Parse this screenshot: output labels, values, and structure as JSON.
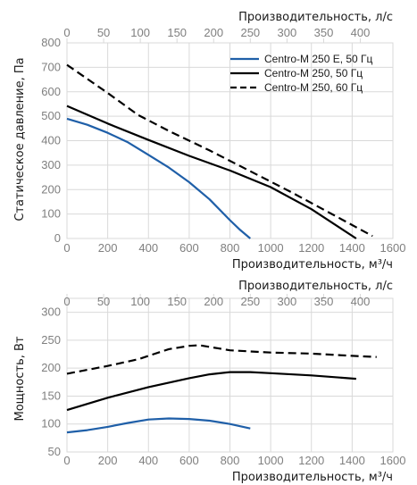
{
  "chart_data": [
    {
      "type": "line",
      "xlabel": "Производительность, м³/ч",
      "x2label": "Производительность, л/с",
      "ylabel": "Статическое давление, Па",
      "xlim": [
        0,
        1600
      ],
      "x2lim": [
        0,
        444.4
      ],
      "ylim": [
        0,
        800
      ],
      "xticks": [
        "0",
        "200",
        "400",
        "600",
        "800",
        "1000",
        "1200",
        "1400",
        "1600"
      ],
      "x2ticks": [
        "0",
        "50",
        "100",
        "150",
        "200",
        "250",
        "300",
        "350",
        "400"
      ],
      "yticks": [
        "0",
        "100",
        "200",
        "300",
        "400",
        "500",
        "600",
        "700",
        "800"
      ],
      "grid": true,
      "legend": "top-right",
      "series": [
        {
          "name": "Centro-M 250 E, 50 Гц",
          "color": "#1f5fa8",
          "dash": "solid",
          "x": [
            0,
            100,
            200,
            300,
            400,
            500,
            600,
            700,
            800,
            850,
            900
          ],
          "y": [
            490,
            465,
            432,
            393,
            342,
            290,
            230,
            160,
            75,
            35,
            0
          ]
        },
        {
          "name": "Centro-M 250, 50 Гц",
          "color": "#000000",
          "dash": "solid",
          "x": [
            0,
            200,
            400,
            600,
            800,
            1000,
            1200,
            1420
          ],
          "y": [
            542,
            470,
            403,
            338,
            278,
            210,
            120,
            0
          ]
        },
        {
          "name": "Centro-M 250, 60 Гц",
          "color": "#000000",
          "dash": "dashed",
          "x": [
            0,
            200,
            350,
            500,
            700,
            900,
            1100,
            1300,
            1500
          ],
          "y": [
            710,
            595,
            505,
            440,
            360,
            275,
            190,
            100,
            10
          ]
        }
      ]
    },
    {
      "type": "line",
      "xlabel": "Производительность, м³/ч",
      "x2label": "Производительность, л/с",
      "ylabel": "Мощность, Вт",
      "xlim": [
        0,
        1600
      ],
      "x2lim": [
        0,
        444.4
      ],
      "ylim": [
        50,
        325
      ],
      "xticks": [
        "0",
        "200",
        "400",
        "600",
        "800",
        "1000",
        "1200",
        "1400",
        "1600"
      ],
      "x2ticks": [
        "0",
        "50",
        "100",
        "150",
        "200",
        "250",
        "300",
        "350",
        "400"
      ],
      "yticks": [
        "50",
        "100",
        "150",
        "200",
        "250",
        "300"
      ],
      "grid": true,
      "series": [
        {
          "color": "#1f5fa8",
          "dash": "solid",
          "x": [
            0,
            100,
            200,
            300,
            400,
            500,
            600,
            700,
            800,
            900
          ],
          "y": [
            85,
            89,
            95,
            102,
            108,
            110,
            109,
            106,
            100,
            92
          ]
        },
        {
          "color": "#000000",
          "dash": "solid",
          "x": [
            0,
            200,
            400,
            600,
            700,
            800,
            900,
            1000,
            1200,
            1420
          ],
          "y": [
            125,
            147,
            166,
            182,
            189,
            193,
            193,
            191,
            187,
            181
          ]
        },
        {
          "color": "#000000",
          "dash": "dashed",
          "x": [
            0,
            200,
            350,
            500,
            600,
            650,
            700,
            800,
            1000,
            1200,
            1400,
            1520
          ],
          "y": [
            190,
            204,
            216,
            234,
            240,
            241,
            238,
            232,
            228,
            226,
            222,
            220
          ]
        }
      ]
    }
  ]
}
